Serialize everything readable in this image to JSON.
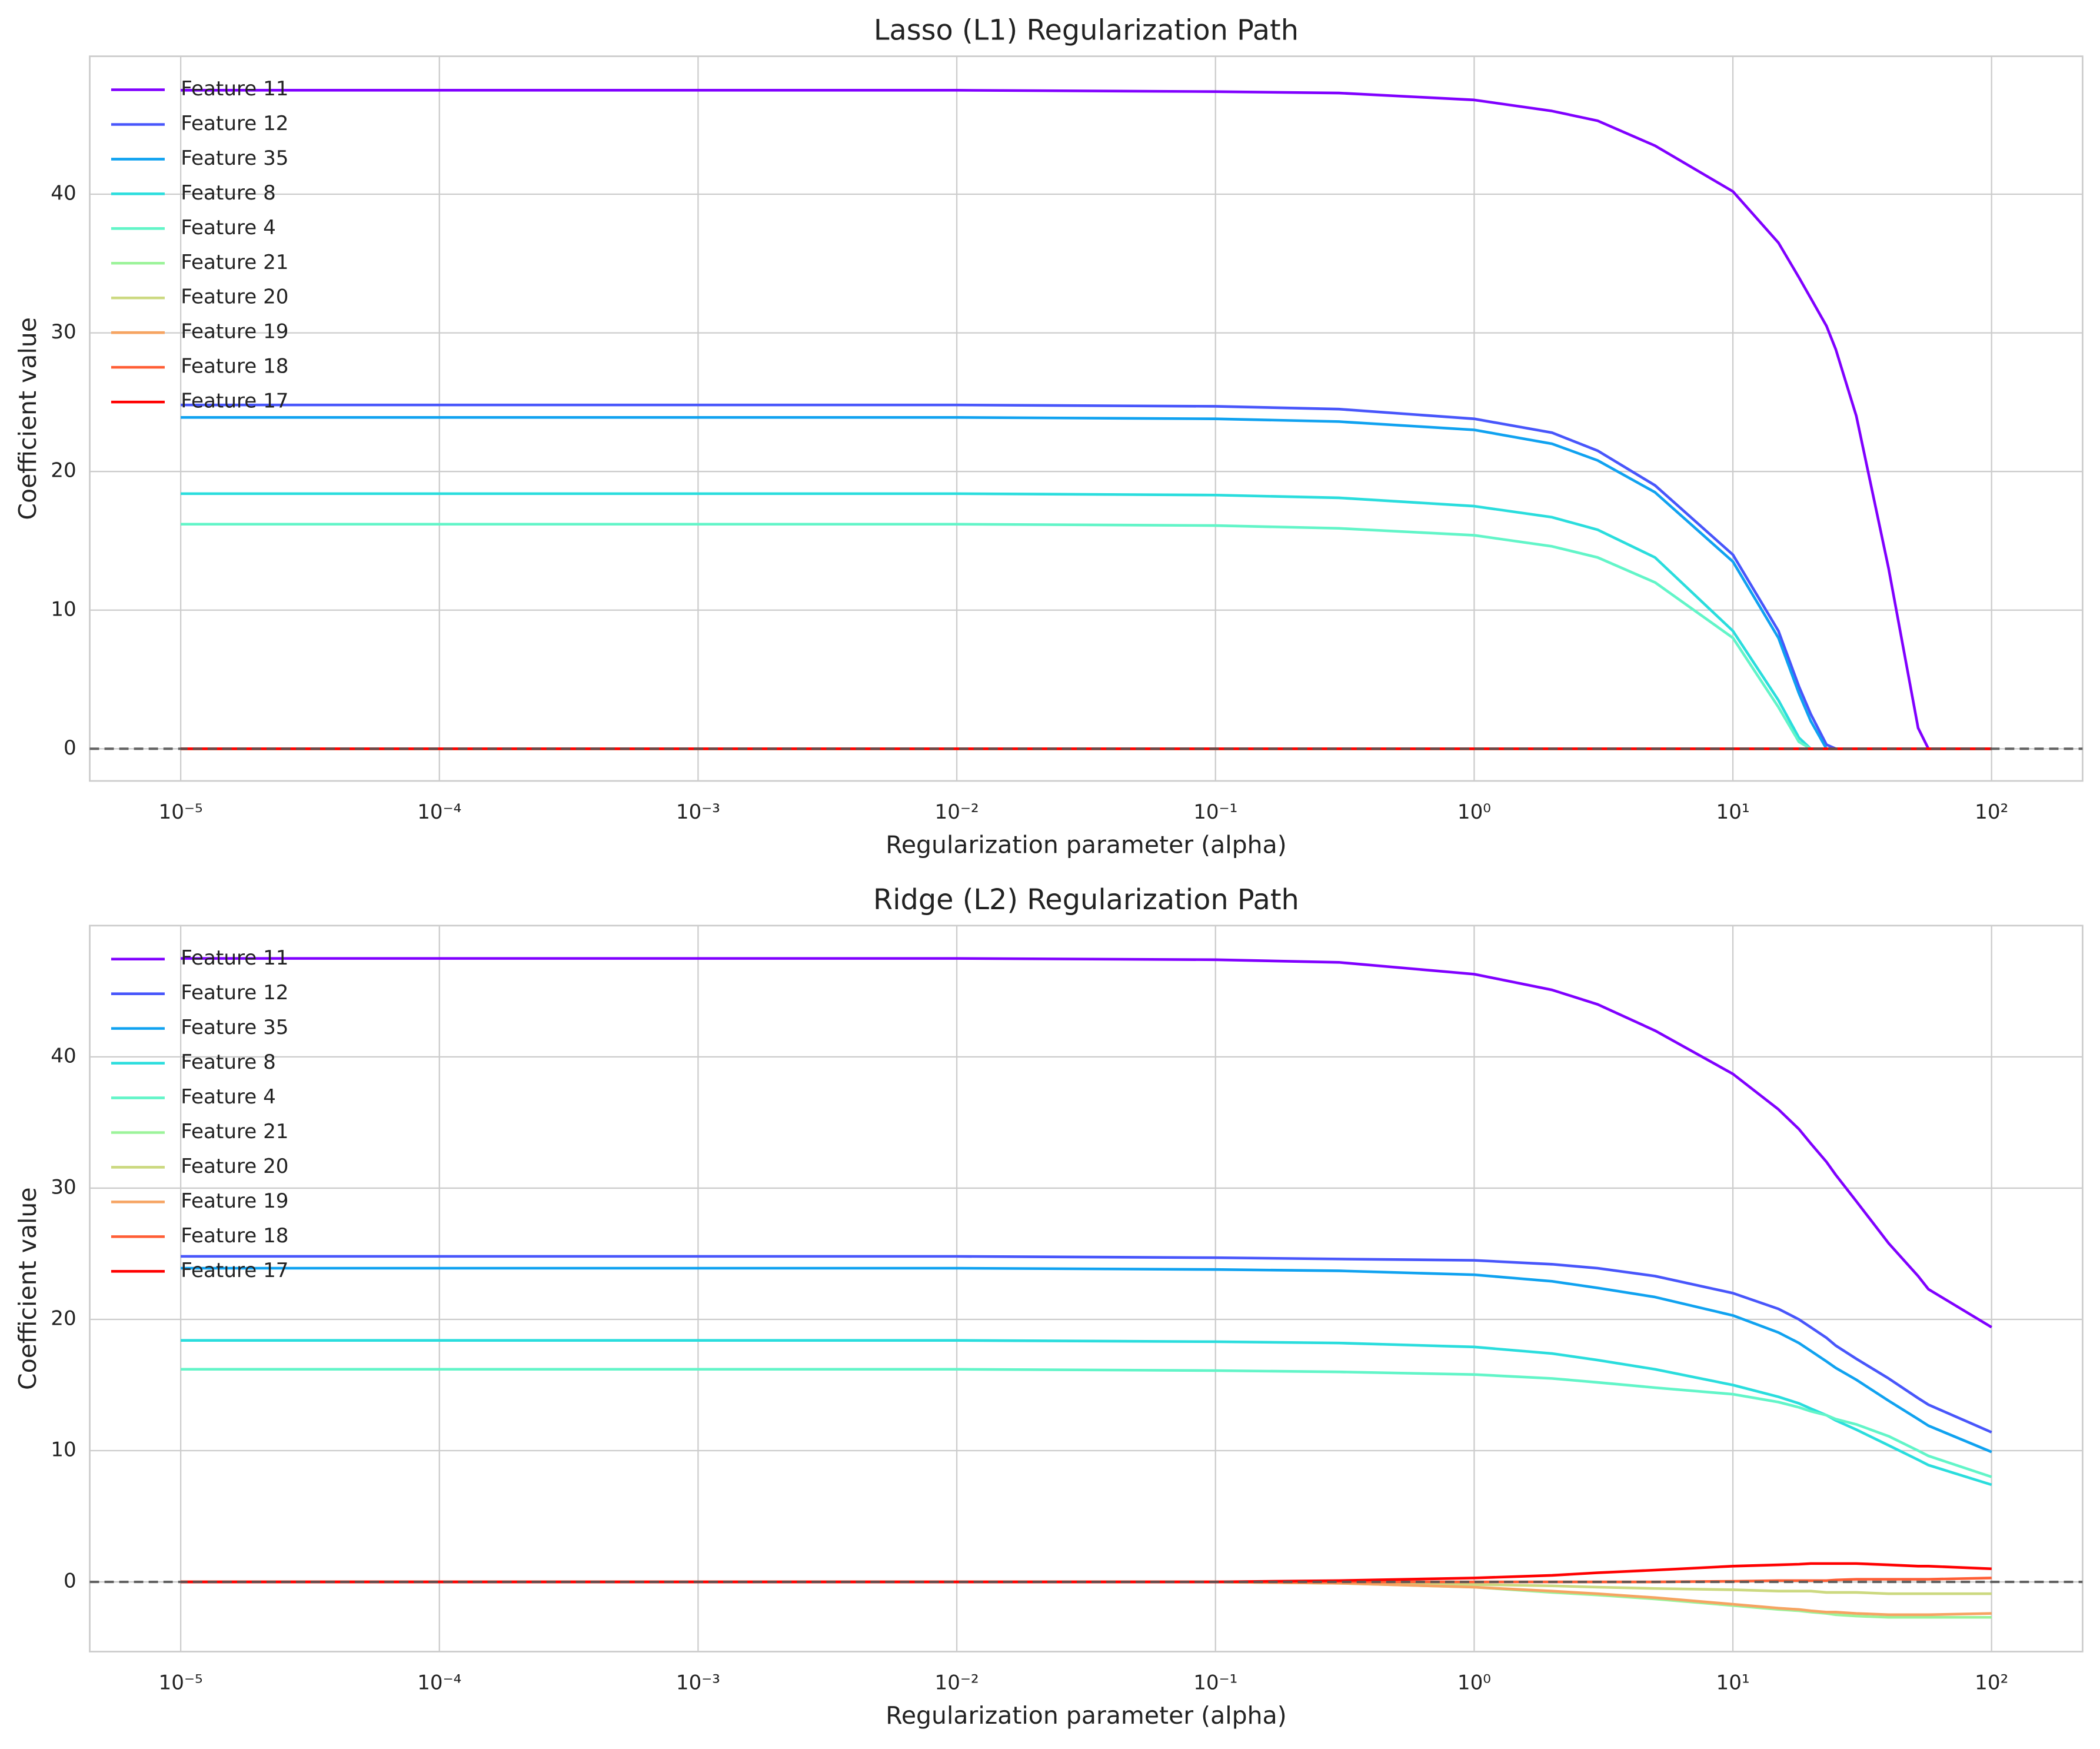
{
  "chart_data": [
    {
      "type": "line",
      "title": "Lasso (L1) Regularization Path",
      "xlabel": "Regularization parameter (alpha)",
      "ylabel": "Coefficient value",
      "xscale": "log",
      "grid": true,
      "legend": "upper left",
      "hline": 0,
      "xlim": [
        4.45e-06,
        224.8
      ],
      "ylim": [
        -2.32,
        49.95
      ],
      "xticks": [
        {
          "value": 1e-05,
          "label": "10⁻⁵"
        },
        {
          "value": 0.0001,
          "label": "10⁻⁴"
        },
        {
          "value": 0.001,
          "label": "10⁻³"
        },
        {
          "value": 0.01,
          "label": "10⁻²"
        },
        {
          "value": 0.1,
          "label": "10⁻¹"
        },
        {
          "value": 1,
          "label": "10⁰"
        },
        {
          "value": 10,
          "label": "10¹"
        },
        {
          "value": 100,
          "label": "10²"
        }
      ],
      "yticks": [
        0,
        10,
        20,
        30,
        40
      ],
      "x": [
        1e-05,
        0.0001,
        0.001,
        0.01,
        0.1,
        0.3,
        1,
        2,
        3,
        5,
        10,
        15,
        18,
        20,
        23,
        25,
        30,
        40,
        52,
        57,
        100
      ],
      "series": [
        {
          "name": "Feature 11",
          "color": "#8000ff",
          "values": [
            47.5,
            47.5,
            47.5,
            47.5,
            47.4,
            47.3,
            46.8,
            46,
            45.3,
            43.5,
            40.2,
            36.5,
            34,
            32.5,
            30.5,
            28.8,
            24,
            13,
            1.5,
            0,
            0
          ]
        },
        {
          "name": "Feature 12",
          "color": "#4856fb",
          "values": [
            24.8,
            24.8,
            24.8,
            24.8,
            24.7,
            24.5,
            23.8,
            22.8,
            21.5,
            19,
            14,
            8.5,
            4.5,
            2.5,
            0.3,
            0,
            0,
            0,
            0,
            0,
            0
          ]
        },
        {
          "name": "Feature 35",
          "color": "#10a2f0",
          "values": [
            23.9,
            23.9,
            23.9,
            23.9,
            23.8,
            23.6,
            23,
            22,
            20.8,
            18.5,
            13.5,
            8,
            4,
            2,
            0,
            0,
            0,
            0,
            0,
            0,
            0
          ]
        },
        {
          "name": "Feature 8",
          "color": "#2adddd",
          "values": [
            18.4,
            18.4,
            18.4,
            18.4,
            18.3,
            18.1,
            17.5,
            16.7,
            15.8,
            13.8,
            8.5,
            3.5,
            0.8,
            0,
            0,
            0,
            0,
            0,
            0,
            0,
            0
          ]
        },
        {
          "name": "Feature 4",
          "color": "#62f5c8",
          "values": [
            16.2,
            16.2,
            16.2,
            16.2,
            16.1,
            15.9,
            15.4,
            14.6,
            13.8,
            12,
            8,
            3,
            0.5,
            0,
            0,
            0,
            0,
            0,
            0,
            0,
            0
          ]
        },
        {
          "name": "Feature 21",
          "color": "#9cf39a",
          "values": [
            0,
            0,
            0,
            0,
            0,
            0,
            0,
            0,
            0,
            0,
            0,
            0,
            0,
            0,
            0,
            0,
            0,
            0,
            0,
            0,
            0
          ]
        },
        {
          "name": "Feature 20",
          "color": "#ccd980",
          "values": [
            0,
            0,
            0,
            0,
            0,
            0,
            0,
            0,
            0,
            0,
            0,
            0,
            0,
            0,
            0,
            0,
            0,
            0,
            0,
            0,
            0
          ]
        },
        {
          "name": "Feature 19",
          "color": "#f6a462",
          "values": [
            0,
            0,
            0,
            0,
            0,
            0,
            0,
            0,
            0,
            0,
            0,
            0,
            0,
            0,
            0,
            0,
            0,
            0,
            0,
            0,
            0
          ]
        },
        {
          "name": "Feature 18",
          "color": "#ff5e35",
          "values": [
            0,
            0,
            0,
            0,
            0,
            0,
            0,
            0,
            0,
            0,
            0,
            0,
            0,
            0,
            0,
            0,
            0,
            0,
            0,
            0,
            0
          ]
        },
        {
          "name": "Feature 17",
          "color": "#ff0000",
          "values": [
            0,
            0,
            0,
            0,
            0,
            0,
            0,
            0,
            0,
            0,
            0,
            0,
            0,
            0,
            0,
            0,
            0,
            0,
            0,
            0,
            0
          ]
        }
      ]
    },
    {
      "type": "line",
      "title": "Ridge (L2) Regularization Path",
      "xlabel": "Regularization parameter (alpha)",
      "ylabel": "Coefficient value",
      "xscale": "log",
      "grid": true,
      "legend": "upper left",
      "hline": 0,
      "xlim": [
        4.45e-06,
        224.8
      ],
      "ylim": [
        -5.31,
        50.0
      ],
      "xticks": [
        {
          "value": 1e-05,
          "label": "10⁻⁵"
        },
        {
          "value": 0.0001,
          "label": "10⁻⁴"
        },
        {
          "value": 0.001,
          "label": "10⁻³"
        },
        {
          "value": 0.01,
          "label": "10⁻²"
        },
        {
          "value": 0.1,
          "label": "10⁻¹"
        },
        {
          "value": 1,
          "label": "10⁰"
        },
        {
          "value": 10,
          "label": "10¹"
        },
        {
          "value": 100,
          "label": "10²"
        }
      ],
      "yticks": [
        0,
        10,
        20,
        30,
        40
      ],
      "x": [
        1e-05,
        0.0001,
        0.001,
        0.01,
        0.1,
        0.3,
        1,
        2,
        3,
        5,
        10,
        15,
        18,
        20,
        23,
        25,
        30,
        40,
        52,
        57,
        100
      ],
      "series": [
        {
          "name": "Feature 11",
          "color": "#8000ff",
          "values": [
            47.5,
            47.5,
            47.5,
            47.5,
            47.4,
            47.2,
            46.3,
            45.1,
            44,
            42,
            38.7,
            36,
            34.5,
            33.4,
            32,
            31,
            29,
            25.8,
            23.3,
            22.3,
            19.4
          ]
        },
        {
          "name": "Feature 12",
          "color": "#4856fb",
          "values": [
            24.8,
            24.8,
            24.8,
            24.8,
            24.7,
            24.6,
            24.5,
            24.2,
            23.9,
            23.3,
            22,
            20.8,
            20,
            19.4,
            18.6,
            18,
            17,
            15.5,
            14,
            13.5,
            11.4
          ]
        },
        {
          "name": "Feature 35",
          "color": "#10a2f0",
          "values": [
            23.9,
            23.9,
            23.9,
            23.9,
            23.8,
            23.7,
            23.4,
            22.9,
            22.4,
            21.7,
            20.3,
            19,
            18.2,
            17.6,
            16.8,
            16.3,
            15.4,
            13.8,
            12.4,
            11.9,
            9.9
          ]
        },
        {
          "name": "Feature 8",
          "color": "#2adddd",
          "values": [
            18.4,
            18.4,
            18.4,
            18.4,
            18.3,
            18.2,
            17.9,
            17.4,
            16.9,
            16.2,
            15,
            14.1,
            13.6,
            13.2,
            12.7,
            12.3,
            11.6,
            10.4,
            9.3,
            8.9,
            7.4
          ]
        },
        {
          "name": "Feature 4",
          "color": "#62f5c8",
          "values": [
            16.2,
            16.2,
            16.2,
            16.2,
            16.1,
            16,
            15.8,
            15.5,
            15.2,
            14.8,
            14.3,
            13.7,
            13.3,
            13,
            12.7,
            12.4,
            12,
            11.1,
            10,
            9.6,
            8
          ]
        },
        {
          "name": "Feature 21",
          "color": "#9cf39a",
          "values": [
            0,
            0,
            0,
            0,
            0,
            -0.1,
            -0.4,
            -0.8,
            -1,
            -1.3,
            -1.8,
            -2.1,
            -2.2,
            -2.3,
            -2.4,
            -2.5,
            -2.6,
            -2.7,
            -2.7,
            -2.7,
            -2.7
          ]
        },
        {
          "name": "Feature 20",
          "color": "#ccd980",
          "values": [
            0,
            0,
            0,
            0,
            0,
            -0.1,
            -0.2,
            -0.3,
            -0.4,
            -0.5,
            -0.6,
            -0.7,
            -0.7,
            -0.7,
            -0.8,
            -0.8,
            -0.8,
            -0.9,
            -0.9,
            -0.9,
            -0.9
          ]
        },
        {
          "name": "Feature 19",
          "color": "#f6a462",
          "values": [
            0,
            0,
            0,
            0,
            0,
            -0.1,
            -0.4,
            -0.7,
            -0.9,
            -1.2,
            -1.7,
            -2,
            -2.1,
            -2.2,
            -2.3,
            -2.3,
            -2.4,
            -2.5,
            -2.5,
            -2.5,
            -2.4
          ]
        },
        {
          "name": "Feature 18",
          "color": "#ff5e35",
          "values": [
            0,
            0,
            0,
            0,
            0,
            0,
            0,
            0,
            0,
            0,
            0.05,
            0.1,
            0.1,
            0.1,
            0.1,
            0.15,
            0.2,
            0.2,
            0.2,
            0.2,
            0.3
          ]
        },
        {
          "name": "Feature 17",
          "color": "#ff0000",
          "values": [
            0,
            0,
            0,
            0,
            0,
            0.1,
            0.3,
            0.5,
            0.7,
            0.9,
            1.2,
            1.3,
            1.35,
            1.4,
            1.4,
            1.4,
            1.4,
            1.3,
            1.2,
            1.2,
            1
          ]
        }
      ]
    }
  ]
}
